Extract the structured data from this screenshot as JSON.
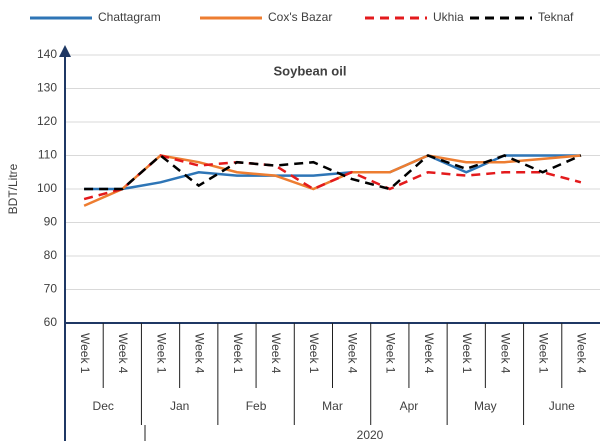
{
  "chart_data": {
    "type": "line",
    "title": "Soybean oil",
    "y_label": "BDT/Litre",
    "categories": [
      "Week 1",
      "Week 4",
      "Week 1",
      "Week 4",
      "Week 1",
      "Week 4",
      "Week 1",
      "Week 4",
      "Week 1",
      "Week 4",
      "Week 1",
      "Week 4",
      "Week 1",
      "Week 4"
    ],
    "months": [
      "Dec",
      "Jan",
      "Feb",
      "Mar",
      "Apr",
      "May",
      "June"
    ],
    "year": "2020",
    "series": [
      {
        "name": "Chattagram",
        "color": "#2e75b6",
        "dash": false,
        "values": [
          100,
          100,
          102,
          105,
          104,
          104,
          104,
          105,
          105,
          110,
          105,
          110,
          110,
          110
        ]
      },
      {
        "name": "Cox's Bazar",
        "color": "#ed7d31",
        "dash": false,
        "values": [
          95,
          100,
          110,
          108,
          105,
          104,
          100,
          105,
          105,
          110,
          108,
          108,
          109,
          110
        ]
      },
      {
        "name": "Ukhia",
        "color": "#e31a1c",
        "dash": true,
        "values": [
          97,
          100,
          110,
          107,
          108,
          107,
          100,
          105,
          100,
          105,
          104,
          105,
          105,
          102
        ]
      },
      {
        "name": "Teknaf",
        "color": "#000000",
        "dash": true,
        "values": [
          100,
          100,
          110,
          101,
          108,
          107,
          108,
          103,
          100,
          110,
          106,
          110,
          105,
          110
        ]
      }
    ],
    "ylim": [
      60,
      140
    ],
    "yticks": [
      60,
      70,
      80,
      90,
      100,
      110,
      120,
      130,
      140
    ],
    "grid": true,
    "legend": "top"
  }
}
